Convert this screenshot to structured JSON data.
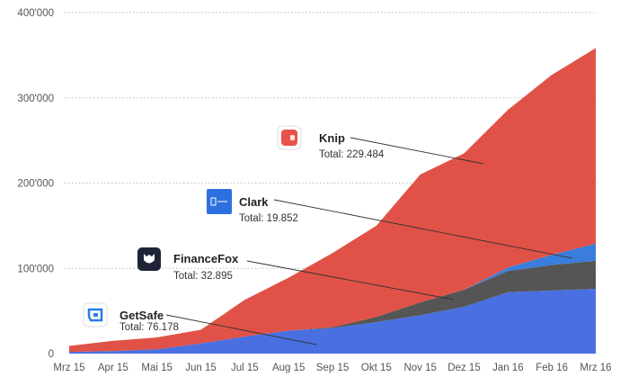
{
  "chart_data": {
    "type": "area",
    "stacked": true,
    "categories": [
      "Mrz 15",
      "Apr 15",
      "Mai 15",
      "Jun 15",
      "Jul 15",
      "Aug 15",
      "Sep 15",
      "Okt 15",
      "Nov 15",
      "Dez 15",
      "Jan 16",
      "Feb 16",
      "Mrz 16"
    ],
    "ylim": [
      0,
      400000
    ],
    "yticks": [
      "0",
      "100'000",
      "200'000",
      "300'000",
      "400'000"
    ],
    "grid": "horizontal dotted",
    "legend": "inline labels with icons",
    "series": [
      {
        "name": "GetSafe",
        "total_label": "Total: 76.178",
        "icon": "getsafe-icon",
        "color": "#4a6fe0",
        "values": [
          2000,
          3000,
          5000,
          12000,
          20000,
          27000,
          30000,
          37000,
          45000,
          55000,
          72000,
          74000,
          76000
        ]
      },
      {
        "name": "FinanceFox",
        "total_label": "Total: 32.895",
        "icon": "financefox-icon",
        "color": "#555555",
        "values": [
          0,
          0,
          0,
          0,
          0,
          0,
          1000,
          6000,
          15000,
          20000,
          25000,
          30000,
          33000
        ]
      },
      {
        "name": "Clark",
        "total_label": "Total: 19.852",
        "icon": "clark-icon",
        "color": "#3b7ddd",
        "values": [
          0,
          0,
          0,
          0,
          0,
          0,
          0,
          0,
          0,
          0,
          4000,
          12000,
          20000
        ]
      },
      {
        "name": "Knip",
        "total_label": "Total: 229.484",
        "icon": "knip-icon",
        "color": "#e05247",
        "values": [
          7000,
          12000,
          14000,
          16000,
          43000,
          62000,
          87000,
          107000,
          150000,
          160000,
          185000,
          211000,
          229484
        ]
      }
    ]
  }
}
